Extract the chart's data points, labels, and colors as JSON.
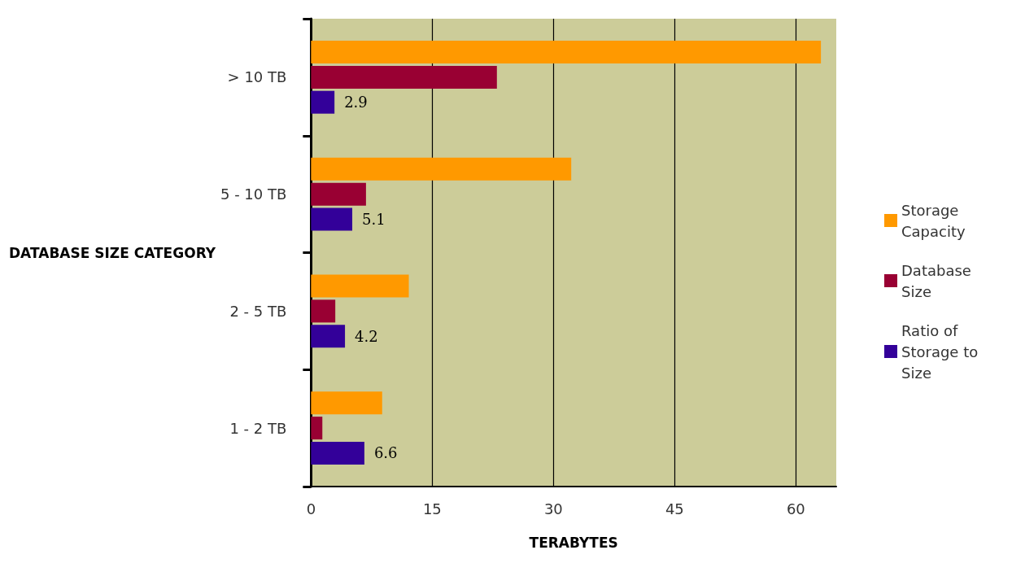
{
  "chart_data": {
    "type": "bar",
    "orientation": "horizontal",
    "xlabel": "TERABYTES",
    "ylabel": "DATABASE SIZE CATEGORY",
    "categories": [
      "> 10 TB",
      "5 - 10 TB",
      "2 - 5 TB",
      "1 - 2 TB"
    ],
    "series": [
      {
        "name": "Storage Capacity",
        "color": "#ff9900",
        "values": [
          63.1,
          32.2,
          12.1,
          8.8
        ]
      },
      {
        "name": "Database Size",
        "color": "#990033",
        "values": [
          23.0,
          6.8,
          3.0,
          1.4
        ]
      },
      {
        "name": "Ratio of Storage to Size",
        "color": "#330099",
        "values": [
          2.9,
          5.1,
          4.2,
          6.6
        ],
        "value_labels": [
          "2.9",
          "5.1",
          "4.2",
          "6.6"
        ]
      }
    ],
    "xlim": [
      0,
      65
    ],
    "xticks": [
      0,
      15,
      30,
      45,
      60
    ],
    "grid": "x",
    "legend": "right"
  }
}
